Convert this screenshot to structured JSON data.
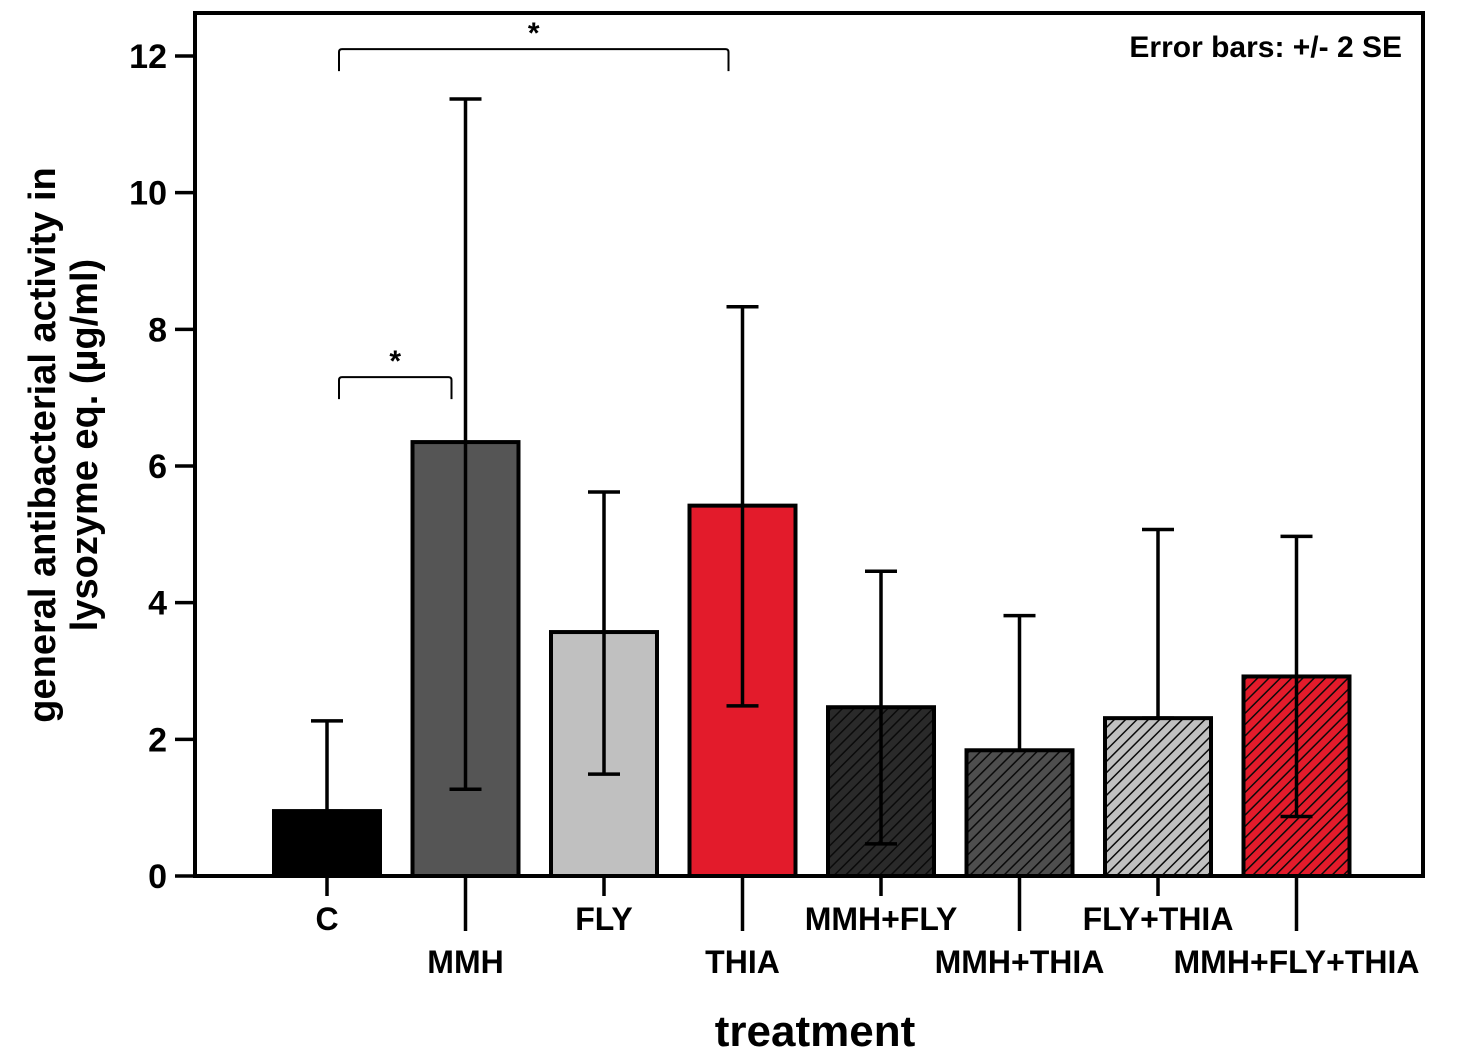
{
  "chart_data": {
    "type": "bar",
    "categories": [
      "C",
      "MMH",
      "FLY",
      "THIA",
      "MMH+FLY",
      "MMH+THIA",
      "FLY+THIA",
      "MMH+FLY+THIA"
    ],
    "values": [
      0.95,
      6.35,
      3.57,
      5.42,
      2.47,
      1.84,
      2.31,
      2.92
    ],
    "error_bars": [
      {
        "low": 0.95,
        "high": 2.27
      },
      {
        "low": 1.27,
        "high": 11.37
      },
      {
        "low": 1.49,
        "high": 5.62
      },
      {
        "low": 2.49,
        "high": 8.33
      },
      {
        "low": 0.47,
        "high": 4.46
      },
      {
        "low": 1.84,
        "high": 3.81
      },
      {
        "low": 2.31,
        "high": 5.07
      },
      {
        "low": 0.87,
        "high": 4.97
      }
    ],
    "fills": [
      {
        "color": "#000000",
        "hatched": false
      },
      {
        "color": "#555555",
        "hatched": false
      },
      {
        "color": "#c0c0c0",
        "hatched": false
      },
      {
        "color": "#e31b2b",
        "hatched": false
      },
      {
        "color": "#2a2a2a",
        "hatched": true
      },
      {
        "color": "#4e4e4e",
        "hatched": true
      },
      {
        "color": "#c0c0c0",
        "hatched": true
      },
      {
        "color": "#e31b2b",
        "hatched": true
      }
    ],
    "xlabel": "treatment",
    "ylabel_line1": "general antibacterial activity in",
    "ylabel_line2": "lysozyme eq. (µg/ml)",
    "ylim": [
      0,
      12
    ],
    "yticks": [
      0,
      2,
      4,
      6,
      8,
      10,
      12
    ],
    "annotation": "Error bars: +/- 2 SE",
    "significance": [
      {
        "from": 0,
        "to": 3,
        "y": 12.1,
        "label": "*"
      },
      {
        "from": 0,
        "to": 1,
        "y": 7.3,
        "label": "*"
      }
    ],
    "grid": false,
    "legend": "none"
  }
}
